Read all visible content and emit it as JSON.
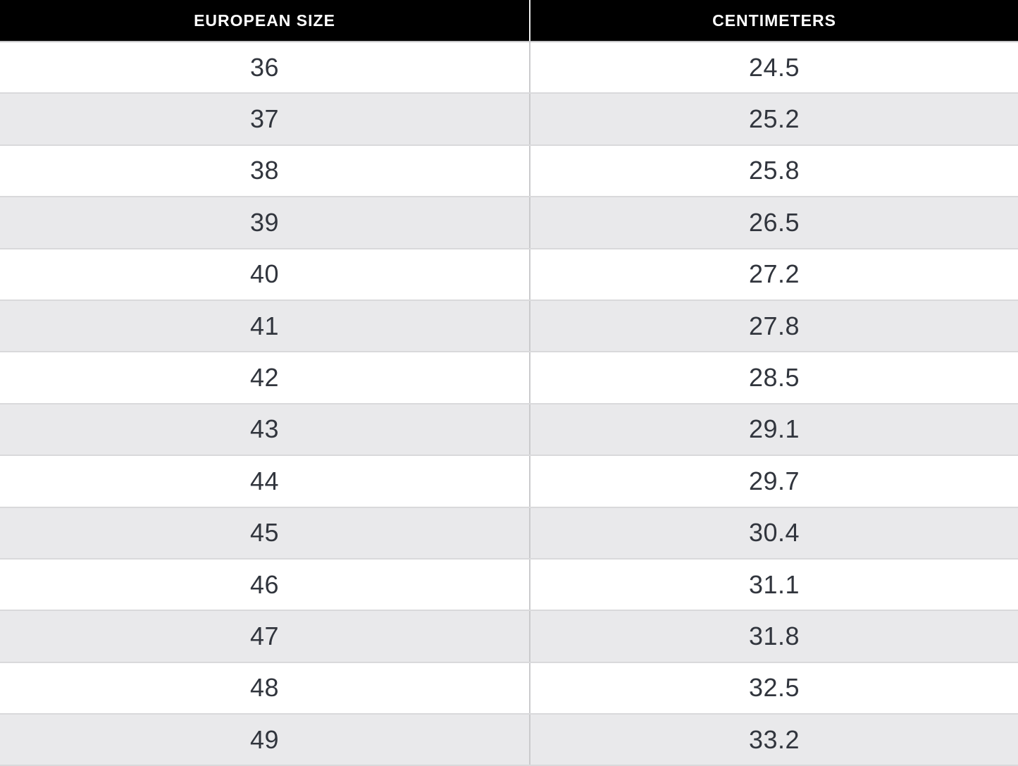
{
  "chart_data": {
    "type": "table",
    "columns": [
      "EUROPEAN SIZE",
      "CENTIMETERS"
    ],
    "rows": [
      [
        "36",
        "24.5"
      ],
      [
        "37",
        "25.2"
      ],
      [
        "38",
        "25.8"
      ],
      [
        "39",
        "26.5"
      ],
      [
        "40",
        "27.2"
      ],
      [
        "41",
        "27.8"
      ],
      [
        "42",
        "28.5"
      ],
      [
        "43",
        "29.1"
      ],
      [
        "44",
        "29.7"
      ],
      [
        "45",
        "30.4"
      ],
      [
        "46",
        "31.1"
      ],
      [
        "47",
        "31.8"
      ],
      [
        "48",
        "32.5"
      ],
      [
        "49",
        "33.2"
      ]
    ]
  },
  "colors": {
    "header_bg": "#000000",
    "header_text": "#ffffff",
    "body_text": "#31353d",
    "row_bg": "#ffffff",
    "row_alt_bg": "#e9e9eb",
    "header_divider": "#ededed",
    "column_divider": "#cbcbcd",
    "row_border": "#d9d9db"
  }
}
